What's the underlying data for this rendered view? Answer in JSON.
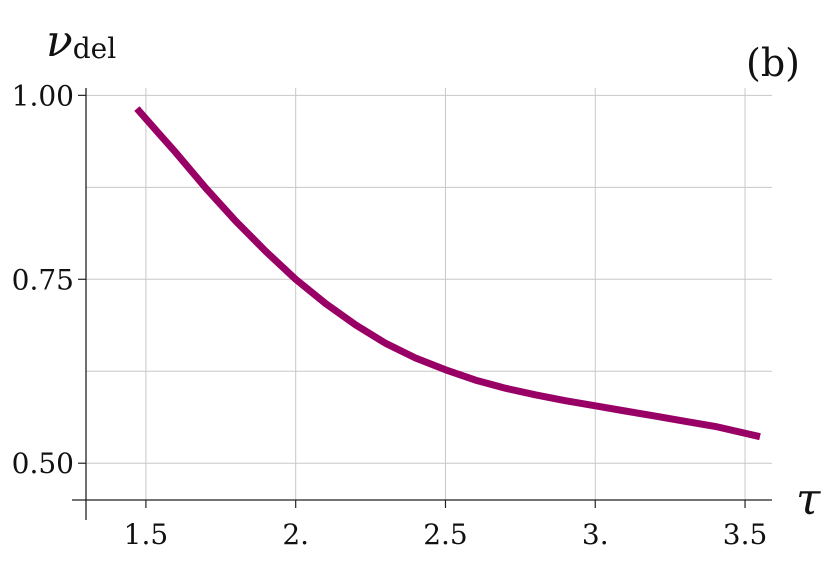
{
  "chart_data": {
    "type": "line",
    "panel_label": "(b)",
    "ylabel": "ν",
    "ylabel_sub": "del",
    "xlabel": "τ",
    "x_ticks": [
      1.5,
      2.0,
      2.5,
      3.0,
      3.5
    ],
    "x_tick_labels": [
      "1.5",
      "2.",
      "2.5",
      "3.",
      "3.5"
    ],
    "y_ticks": [
      0.5,
      0.75,
      1.0
    ],
    "y_tick_labels": [
      "0.50",
      "0.75",
      "1.00"
    ],
    "y_minor_grid": [
      0.625,
      0.875
    ],
    "xlim": [
      1.3,
      3.59
    ],
    "ylim": [
      0.45,
      1.01
    ],
    "grid": true,
    "color": "#990066",
    "series": [
      {
        "x": [
          1.47,
          1.55,
          1.6,
          1.7,
          1.8,
          1.9,
          2.0,
          2.1,
          2.2,
          2.3,
          2.4,
          2.5,
          2.6,
          2.7,
          2.8,
          2.9,
          3.0,
          3.1,
          3.2,
          3.3,
          3.4,
          3.55
        ],
        "y": [
          0.982,
          0.945,
          0.922,
          0.874,
          0.829,
          0.788,
          0.75,
          0.717,
          0.688,
          0.663,
          0.643,
          0.627,
          0.613,
          0.602,
          0.593,
          0.585,
          0.578,
          0.571,
          0.564,
          0.557,
          0.55,
          0.536
        ]
      }
    ]
  }
}
